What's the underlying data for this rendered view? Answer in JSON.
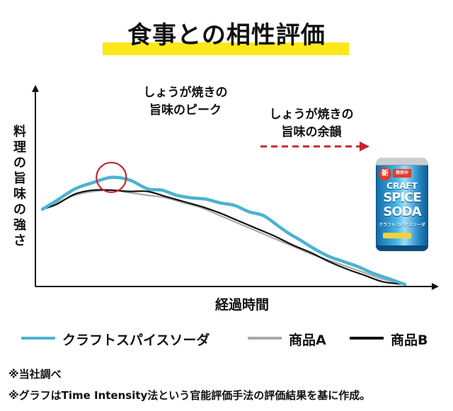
{
  "title": "食事との相性評価",
  "colors": {
    "highlight": "#fde81a",
    "craft": "#4bb3d1",
    "a": "#a9a9a9",
    "b": "#111111",
    "peak_circle": "#c6262e",
    "arrow": "#c6262e"
  },
  "annotations": {
    "peak": [
      "しょうが焼きの",
      "旨味のピーク"
    ],
    "lingering": [
      "しょうが焼きの",
      "旨味の余韻"
    ]
  },
  "product_image": {
    "icon": "soda-can-image",
    "new_badge": "新",
    "top_badge": "発売中",
    "line1": "CRAFT",
    "line2": "SPICE",
    "line3": "SODA",
    "sub": "クラフトスパイスソーダ"
  },
  "legend": [
    {
      "label": "クラフトスパイスソーダ"
    },
    {
      "label": "商品A"
    },
    {
      "label": "商品B"
    }
  ],
  "notes": [
    "※当社調べ",
    "※グラフはTime Intensity法という官能評価手法の評価結果を基に作成。"
  ],
  "chart_data": {
    "type": "line",
    "xlabel": "経過時間",
    "ylabel": "料理の旨味の強さ",
    "xlim": [
      0,
      100
    ],
    "ylim": [
      0,
      100
    ],
    "grid": false,
    "legend_position": "bottom",
    "series": [
      {
        "name": "クラフトスパイスソーダ",
        "x": [
          0,
          4,
          9,
          14,
          19,
          24,
          29,
          33,
          37,
          41,
          45,
          49,
          53,
          57,
          61,
          65,
          68,
          71,
          75,
          79,
          83,
          87,
          91,
          95,
          100
        ],
        "y": [
          59,
          66,
          75,
          80,
          84,
          82,
          75,
          74,
          70,
          68,
          67,
          64,
          62,
          57,
          54,
          46,
          40,
          35,
          28,
          22,
          18,
          14,
          9,
          5,
          0
        ]
      },
      {
        "name": "商品A",
        "x": [
          0,
          4,
          9,
          14,
          19,
          24,
          29,
          34,
          39,
          44,
          49,
          54,
          59,
          64,
          69,
          74,
          79,
          84,
          89,
          94,
          100
        ],
        "y": [
          59,
          64,
          70,
          73,
          74,
          72,
          70,
          68,
          64,
          60,
          54,
          48,
          42,
          36,
          30,
          24,
          19,
          14,
          9,
          4,
          0
        ]
      },
      {
        "name": "商品B",
        "x": [
          0,
          4,
          9,
          14,
          19,
          24,
          29,
          34,
          39,
          44,
          49,
          54,
          59,
          64,
          69,
          74,
          79,
          84,
          89,
          94,
          100
        ],
        "y": [
          59,
          63,
          71,
          74,
          74,
          73,
          73,
          69,
          65,
          61,
          56,
          50,
          44,
          38,
          31,
          25,
          18,
          12,
          7,
          2,
          0
        ]
      }
    ]
  }
}
